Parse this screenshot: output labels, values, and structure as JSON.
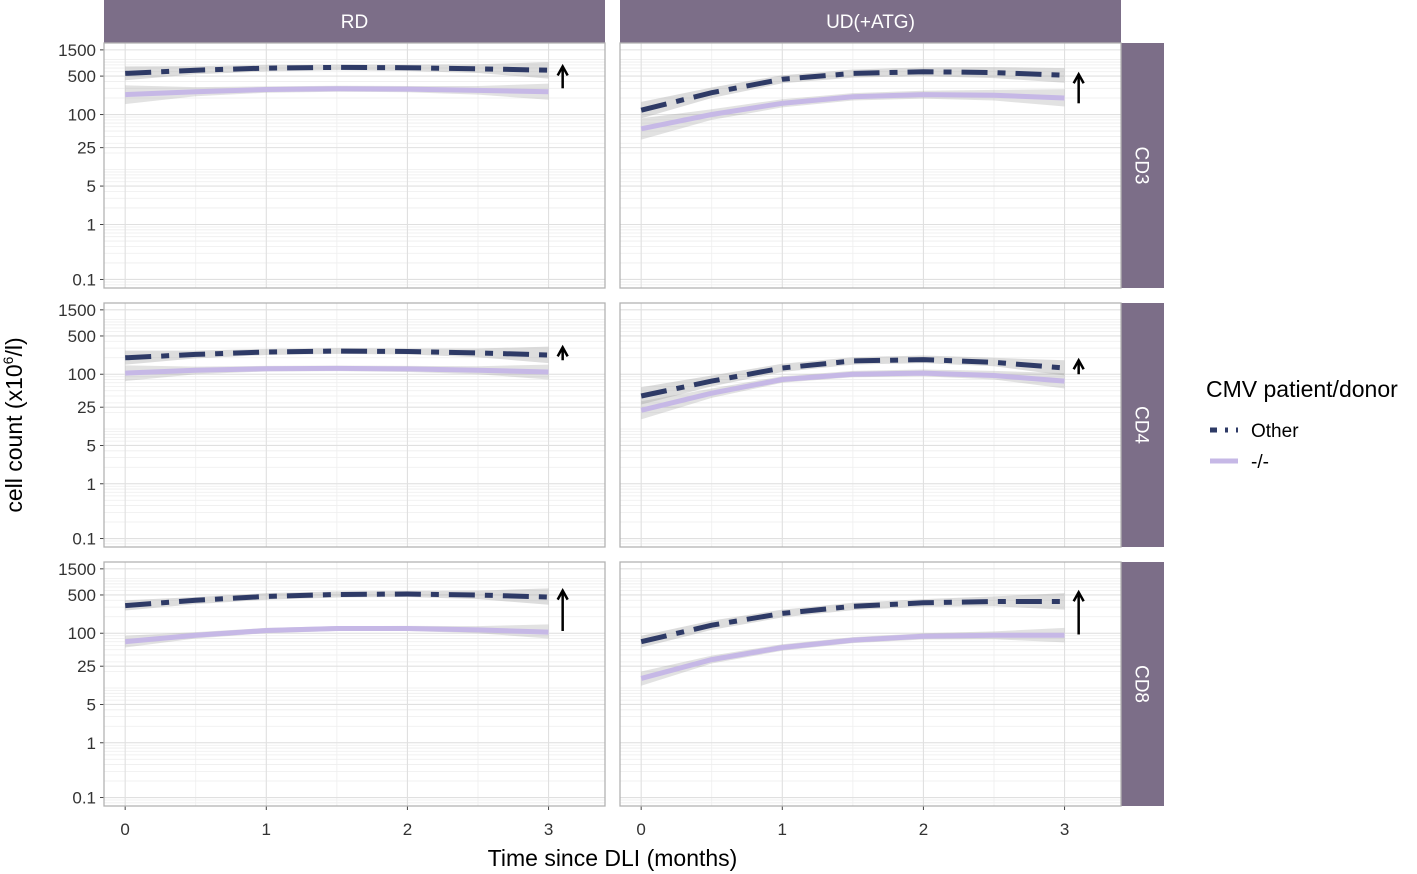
{
  "chart_data": {
    "type": "line",
    "layout": "facet-grid",
    "xlabel": "Time since DLI (months)",
    "ylabel_prefix": "cell count (x10",
    "ylabel_sup": "6",
    "ylabel_suffix": "/l)",
    "x_ticks": [
      0,
      1,
      2,
      3
    ],
    "x_range": [
      -0.15,
      3.4
    ],
    "y_scale": "log",
    "y_ticks": [
      0.1,
      1,
      5,
      25,
      100,
      500,
      1500
    ],
    "y_tick_labels": [
      "0.1",
      "1",
      "5",
      "25",
      "100",
      "500",
      "1500"
    ],
    "y_range": [
      0.07,
      2000
    ],
    "col_facets": [
      "RD",
      "UD(+ATG)"
    ],
    "row_facets": [
      "CD3",
      "CD4",
      "CD8"
    ],
    "legend": {
      "title": "CMV patient/donor",
      "position": "right",
      "entries": [
        {
          "name": "Other",
          "color": "#2e3a66",
          "style": "dashdot"
        },
        {
          "name": "-/-",
          "color": "#c6b8e6",
          "style": "solid"
        }
      ]
    },
    "x": [
      0,
      0.5,
      1,
      1.5,
      2,
      2.5,
      3
    ],
    "panels": [
      {
        "row": "CD3",
        "col": "RD",
        "other": [
          560,
          640,
          700,
          720,
          710,
          680,
          640
        ],
        "other_band": [
          [
            420,
            750
          ],
          [
            540,
            760
          ],
          [
            610,
            800
          ],
          [
            640,
            810
          ],
          [
            620,
            810
          ],
          [
            570,
            820
          ],
          [
            450,
            900
          ]
        ],
        "neg": [
          230,
          260,
          285,
          295,
          290,
          275,
          260
        ],
        "neg_band": [
          [
            155,
            340
          ],
          [
            215,
            315
          ],
          [
            250,
            325
          ],
          [
            260,
            335
          ],
          [
            255,
            330
          ],
          [
            230,
            330
          ],
          [
            185,
            365
          ]
        ],
        "arrow": [
          300,
          750
        ]
      },
      {
        "row": "CD3",
        "col": "UD(+ATG)",
        "other": [
          120,
          250,
          440,
          560,
          600,
          580,
          520
        ],
        "other_band": [
          [
            85,
            170
          ],
          [
            200,
            310
          ],
          [
            370,
            520
          ],
          [
            470,
            660
          ],
          [
            500,
            720
          ],
          [
            460,
            730
          ],
          [
            380,
            700
          ]
        ],
        "neg": [
          55,
          100,
          160,
          210,
          230,
          225,
          200
        ],
        "neg_band": [
          [
            35,
            85
          ],
          [
            80,
            125
          ],
          [
            135,
            190
          ],
          [
            180,
            245
          ],
          [
            195,
            270
          ],
          [
            180,
            280
          ],
          [
            140,
            290
          ]
        ],
        "arrow": [
          160,
          540
        ]
      },
      {
        "row": "CD4",
        "col": "RD",
        "other": [
          200,
          230,
          255,
          265,
          260,
          245,
          225
        ],
        "other_band": [
          [
            150,
            270
          ],
          [
            195,
            270
          ],
          [
            225,
            290
          ],
          [
            235,
            300
          ],
          [
            230,
            295
          ],
          [
            205,
            295
          ],
          [
            160,
            320
          ]
        ],
        "neg": [
          105,
          118,
          126,
          128,
          125,
          118,
          110
        ],
        "neg_band": [
          [
            75,
            145
          ],
          [
            100,
            138
          ],
          [
            112,
            142
          ],
          [
            114,
            144
          ],
          [
            110,
            142
          ],
          [
            100,
            140
          ],
          [
            80,
            150
          ]
        ],
        "arrow": [
          180,
          310
        ]
      },
      {
        "row": "CD4",
        "col": "UD(+ATG)",
        "other": [
          40,
          75,
          130,
          175,
          185,
          165,
          130
        ],
        "other_band": [
          [
            28,
            58
          ],
          [
            60,
            95
          ],
          [
            110,
            155
          ],
          [
            150,
            205
          ],
          [
            160,
            220
          ],
          [
            140,
            200
          ],
          [
            95,
            180
          ]
        ],
        "neg": [
          22,
          45,
          80,
          100,
          105,
          95,
          75
        ],
        "neg_band": [
          [
            15,
            32
          ],
          [
            37,
            55
          ],
          [
            70,
            92
          ],
          [
            88,
            115
          ],
          [
            92,
            122
          ],
          [
            80,
            115
          ],
          [
            55,
            105
          ]
        ],
        "arrow": [
          100,
          180
        ]
      },
      {
        "row": "CD8",
        "col": "RD",
        "other": [
          320,
          400,
          470,
          510,
          520,
          500,
          460
        ],
        "other_band": [
          [
            260,
            400
          ],
          [
            340,
            460
          ],
          [
            410,
            540
          ],
          [
            450,
            580
          ],
          [
            460,
            590
          ],
          [
            420,
            600
          ],
          [
            330,
            660
          ]
        ],
        "neg": [
          70,
          92,
          112,
          122,
          122,
          115,
          105
        ],
        "neg_band": [
          [
            55,
            90
          ],
          [
            80,
            105
          ],
          [
            100,
            125
          ],
          [
            110,
            135
          ],
          [
            110,
            136
          ],
          [
            100,
            135
          ],
          [
            80,
            145
          ]
        ],
        "arrow": [
          110,
          600
        ]
      },
      {
        "row": "CD8",
        "col": "UD(+ATG)",
        "other": [
          70,
          140,
          230,
          310,
          360,
          380,
          380
        ],
        "other_band": [
          [
            55,
            90
          ],
          [
            115,
            170
          ],
          [
            195,
            270
          ],
          [
            265,
            360
          ],
          [
            305,
            420
          ],
          [
            310,
            470
          ],
          [
            270,
            540
          ]
        ],
        "neg": [
          15,
          33,
          55,
          75,
          88,
          92,
          92
        ],
        "neg_band": [
          [
            11,
            20
          ],
          [
            28,
            39
          ],
          [
            48,
            63
          ],
          [
            66,
            85
          ],
          [
            77,
            100
          ],
          [
            78,
            108
          ],
          [
            68,
            125
          ]
        ],
        "arrow": [
          95,
          560
        ]
      }
    ]
  }
}
